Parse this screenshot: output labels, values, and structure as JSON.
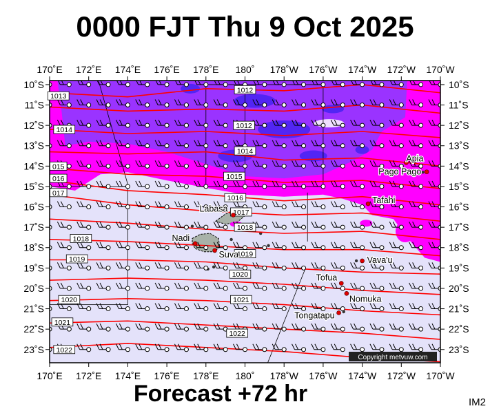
{
  "header": {
    "title": "0000 FJT Thu 9 Oct 2025"
  },
  "footer": {
    "forecast": "Forecast +72 hr",
    "image_code": "IM2"
  },
  "map": {
    "copyright": "Copyright metvuw.com",
    "lon_labels": [
      "170˚E",
      "172˚E",
      "174˚E",
      "176˚E",
      "178˚E",
      "180˚",
      "178˚W",
      "176˚W",
      "174˚W",
      "172˚W",
      "170˚W"
    ],
    "lat_labels": [
      "10˚S",
      "11˚S",
      "12˚S",
      "13˚S",
      "14˚S",
      "15˚S",
      "16˚S",
      "17˚S",
      "18˚S",
      "19˚S",
      "20˚S",
      "21˚S",
      "22˚S",
      "23˚S"
    ],
    "places": [
      {
        "name": "Apia",
        "lon": -171.75,
        "lat": -13.83
      },
      {
        "name": "Pago Pago",
        "lon": -170.7,
        "lat": -14.28
      },
      {
        "name": "Tafahi",
        "lon": -173.7,
        "lat": -15.85
      },
      {
        "name": "Labasa",
        "lon": 179.4,
        "lat": -16.4
      },
      {
        "name": "Nadi",
        "lon": 177.45,
        "lat": -17.8
      },
      {
        "name": "Suva",
        "lon": 178.45,
        "lat": -18.14
      },
      {
        "name": "Vava'u",
        "lon": -174.0,
        "lat": -18.65
      },
      {
        "name": "Tofua",
        "lon": -175.07,
        "lat": -19.75
      },
      {
        "name": "Nomuka",
        "lon": -174.8,
        "lat": -20.25
      },
      {
        "name": "Tongatapu",
        "lon": -175.2,
        "lat": -21.2
      }
    ],
    "isobars": [
      {
        "value": "1012",
        "lon": 180.0,
        "lat": -10.25
      },
      {
        "value": "1013",
        "lon": 170.45,
        "lat": -10.55
      },
      {
        "value": "1012",
        "lon": 179.95,
        "lat": -12.0
      },
      {
        "value": "1014",
        "lon": 170.75,
        "lat": -12.2
      },
      {
        "value": "1014",
        "lon": 180.0,
        "lat": -13.25
      },
      {
        "value": "015",
        "lon": 170.45,
        "lat": -14.0
      },
      {
        "value": "1015",
        "lon": 179.45,
        "lat": -14.5
      },
      {
        "value": "016",
        "lon": 170.45,
        "lat": -14.6
      },
      {
        "value": "017",
        "lon": 170.45,
        "lat": -15.3
      },
      {
        "value": "1016",
        "lon": 179.5,
        "lat": -15.55
      },
      {
        "value": "1017",
        "lon": 179.8,
        "lat": -16.25
      },
      {
        "value": "1018",
        "lon": 180.0,
        "lat": -17.0
      },
      {
        "value": "1018",
        "lon": 171.6,
        "lat": -17.55
      },
      {
        "value": "1019",
        "lon": 180.0,
        "lat": -18.3
      },
      {
        "value": "1019",
        "lon": 171.4,
        "lat": -18.55
      },
      {
        "value": "1020",
        "lon": 179.75,
        "lat": -19.3
      },
      {
        "value": "1021",
        "lon": 179.8,
        "lat": -20.55
      },
      {
        "value": "1020",
        "lon": 171.0,
        "lat": -20.55
      },
      {
        "value": "1021",
        "lon": 170.65,
        "lat": -21.65
      },
      {
        "value": "1022",
        "lon": 179.6,
        "lat": -22.2
      },
      {
        "value": "1022",
        "lon": 170.75,
        "lat": -23.0
      }
    ],
    "colors": {
      "background_fill": "#e4e2fa",
      "rain_light": "#ff00ff",
      "rain_moderate": "#9a33ff",
      "rain_heavy": "#3a22f0",
      "isobar": "#ff0000",
      "place_marker": "#e00000",
      "land": "#a8b2a8"
    }
  }
}
